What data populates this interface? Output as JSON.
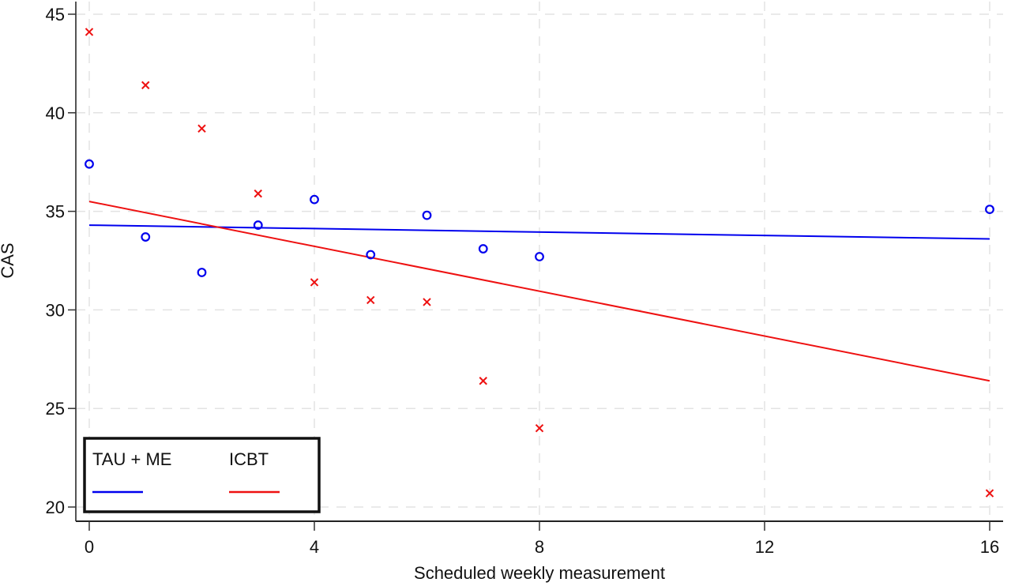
{
  "chart_data": {
    "type": "scatter",
    "title": "",
    "xlabel": "Scheduled weekly measurement",
    "ylabel": "CAS",
    "xlim": [
      0,
      16
    ],
    "ylim": [
      20,
      45
    ],
    "xticks": [
      0,
      4,
      8,
      12,
      16
    ],
    "yticks": [
      20,
      25,
      30,
      35,
      40,
      45
    ],
    "xtick_labels": [
      "0",
      "4",
      "8",
      "12",
      "16"
    ],
    "ytick_labels": [
      "20",
      "25",
      "30",
      "35",
      "40",
      "45"
    ],
    "grid": true,
    "legend_position": "bottom-left",
    "series": [
      {
        "name": "TAU + ME",
        "color": "#0000ee",
        "marker": "circle",
        "x": [
          0,
          1,
          2,
          3,
          4,
          5,
          6,
          7,
          8,
          16
        ],
        "y": [
          37.4,
          33.7,
          31.9,
          34.3,
          35.6,
          32.8,
          34.8,
          33.1,
          32.7,
          35.1
        ],
        "fit_line": {
          "x": [
            0,
            16
          ],
          "y": [
            34.3,
            33.6
          ]
        }
      },
      {
        "name": "ICBT",
        "color": "#ee1111",
        "marker": "x",
        "x": [
          0,
          1,
          2,
          3,
          4,
          5,
          6,
          7,
          8,
          16
        ],
        "y": [
          44.1,
          41.4,
          39.2,
          35.9,
          31.4,
          30.5,
          30.4,
          26.4,
          24.0,
          20.7
        ],
        "fit_line": {
          "x": [
            0,
            16
          ],
          "y": [
            35.5,
            26.4
          ]
        }
      }
    ]
  }
}
